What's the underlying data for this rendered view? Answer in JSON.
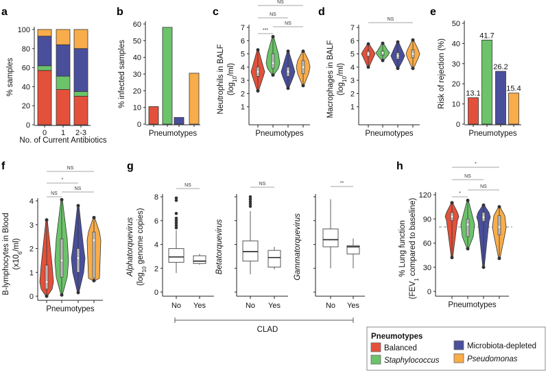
{
  "colors": {
    "balanced": "#e4513b",
    "staphylococcus": "#6cc36a",
    "microbiota_depleted": "#4a4f9c",
    "pseudomonas": "#f9ad4a"
  },
  "legend": {
    "title": "Pneumotypes",
    "items": [
      {
        "label": "Balanced",
        "key": "balanced",
        "italic": false
      },
      {
        "label": "Staphylococcus",
        "key": "staphylococcus",
        "italic": true
      },
      {
        "label": "Microbiota-depleted",
        "key": "microbiota_depleted",
        "italic": false
      },
      {
        "label": "Pseudomonas",
        "key": "pseudomonas",
        "italic": true
      }
    ]
  },
  "chart_data": [
    {
      "panel": "a",
      "type": "bar",
      "stacked": true,
      "ylabel": "% samples",
      "xlabel": "No. of Current Antibiotics",
      "categories": [
        "0",
        "1",
        "2-3"
      ],
      "ylim": [
        0,
        100
      ],
      "yticks": [
        0,
        20,
        40,
        60,
        80,
        100
      ],
      "series": [
        {
          "name": "Balanced",
          "key": "balanced",
          "values": [
            57,
            37,
            30
          ]
        },
        {
          "name": "Staphylococcus",
          "key": "staphylococcus",
          "values": [
            5,
            14,
            5
          ]
        },
        {
          "name": "Microbiota-depleted",
          "key": "microbiota_depleted",
          "values": [
            31,
            33,
            45
          ]
        },
        {
          "name": "Pseudomonas",
          "key": "pseudomonas",
          "values": [
            7,
            16,
            20
          ]
        }
      ]
    },
    {
      "panel": "b",
      "type": "bar",
      "ylabel": "% infected samples",
      "xlabel": "Pneumotypes",
      "categories": [
        "Balanced",
        "Staphylococcus",
        "Microbiota-depleted",
        "Pseudomonas"
      ],
      "values": [
        10.5,
        58,
        4,
        30.5
      ],
      "ylim": [
        0,
        60
      ],
      "yticks": [
        0,
        10,
        20,
        30,
        40,
        50,
        60
      ]
    },
    {
      "panel": "c",
      "type": "violin",
      "ylabel": [
        "Neutrophils in BALF",
        "(log",
        "10",
        "/ml)"
      ],
      "xlabel": "Pneumotypes",
      "ylim": [
        0,
        7
      ],
      "yticks": [
        1,
        2,
        3,
        4,
        5,
        6,
        7
      ],
      "groups": [
        {
          "name": "Balanced",
          "min": 2.2,
          "q1": 3.3,
          "median": 3.65,
          "q3": 4.0,
          "max": 5.3
        },
        {
          "name": "Staphylococcus",
          "min": 3.4,
          "q1": 3.9,
          "median": 4.3,
          "q3": 5.0,
          "max": 6.3
        },
        {
          "name": "Microbiota-depleted",
          "min": 2.4,
          "q1": 3.3,
          "median": 3.65,
          "q3": 4.0,
          "max": 5.2
        },
        {
          "name": "Pseudomonas",
          "min": 2.6,
          "q1": 3.5,
          "median": 4.0,
          "q3": 4.5,
          "max": 5.2
        }
      ],
      "comparisons": [
        {
          "from": 0,
          "to": 1,
          "label": "***"
        },
        {
          "from": 1,
          "to": 3,
          "label": "NS"
        },
        {
          "from": 0,
          "to": 2,
          "label": "NS"
        },
        {
          "from": 0,
          "to": 3,
          "label": "NS"
        }
      ]
    },
    {
      "panel": "d",
      "type": "violin",
      "ylabel": [
        "Macrophages in BALF",
        "(log",
        "10",
        "/ml)"
      ],
      "xlabel": "Pneumotypes",
      "ylim": [
        0,
        7
      ],
      "yticks": [
        1,
        2,
        3,
        4,
        5,
        6,
        7
      ],
      "groups": [
        {
          "name": "Balanced",
          "min": 4.0,
          "q1": 4.8,
          "median": 5.0,
          "q3": 5.2,
          "max": 5.75
        },
        {
          "name": "Staphylococcus",
          "min": 4.5,
          "q1": 4.9,
          "median": 5.1,
          "q3": 5.2,
          "max": 5.8
        },
        {
          "name": "Microbiota-depleted",
          "min": 3.9,
          "q1": 4.6,
          "median": 4.85,
          "q3": 5.1,
          "max": 5.9
        },
        {
          "name": "Pseudomonas",
          "min": 3.9,
          "q1": 4.7,
          "median": 5.0,
          "q3": 5.3,
          "max": 6.05
        }
      ],
      "comparisons": [
        {
          "from": 0,
          "to": 3,
          "label": "NS"
        }
      ]
    },
    {
      "panel": "e",
      "type": "bar",
      "ylabel": "Risk of rejection (%)",
      "xlabel": "Pneumotypes",
      "categories": [
        "Balanced",
        "Staphylococcus",
        "Microbiota-depleted",
        "Pseudomonas"
      ],
      "values": [
        13.1,
        41.7,
        26.2,
        15.4
      ],
      "value_labels": [
        "13.1",
        "41.7",
        "26.2",
        "15.4"
      ],
      "ylim": [
        0,
        50
      ],
      "yticks": [
        0,
        10,
        20,
        30,
        40,
        50
      ]
    },
    {
      "panel": "f",
      "type": "violin",
      "ylabel": [
        "B-lymphocytes in Blood",
        "(x10",
        "6",
        "/ml)"
      ],
      "xlabel": "Pneumotypes",
      "ylim": [
        0,
        4
      ],
      "yticks": [
        0,
        1,
        2,
        3,
        4
      ],
      "groups": [
        {
          "name": "Balanced",
          "min": 0,
          "q1": 0.3,
          "median": 0.6,
          "q3": 1.3,
          "max": 3.2
        },
        {
          "name": "Staphylococcus",
          "min": 0.05,
          "q1": 0.8,
          "median": 1.5,
          "q3": 2.4,
          "max": 4.05
        },
        {
          "name": "Microbiota-depleted",
          "min": 0.15,
          "q1": 1.0,
          "median": 1.6,
          "q3": 2.0,
          "max": 3.8
        },
        {
          "name": "Pseudomonas",
          "min": 0.65,
          "q1": 0.75,
          "median": 2.35,
          "q3": 2.7,
          "max": 3.3
        }
      ],
      "comparisons": [
        {
          "from": 0,
          "to": 1,
          "label": "NS"
        },
        {
          "from": 1,
          "to": 3,
          "label": "NS"
        },
        {
          "from": 0,
          "to": 2,
          "label": "*"
        },
        {
          "from": 0,
          "to": 3,
          "label": "NS"
        }
      ]
    },
    {
      "panel": "g",
      "type": "box",
      "xlabel": "CLAD",
      "ylim": [
        0,
        8
      ],
      "yticks": [
        0,
        2,
        4,
        6,
        8
      ],
      "subplots": [
        {
          "ylabel": [
            "Alphatorquevirus",
            "(log",
            "10",
            " genome copies)"
          ],
          "categories": [
            "No",
            "Yes"
          ],
          "comparison": "NS",
          "boxes": [
            {
              "min": 1.6,
              "q1": 2.5,
              "median": 2.95,
              "q3": 3.65,
              "max": 5.2,
              "outliers": [
                5.4,
                5.6,
                5.8,
                6.0,
                6.2,
                6.6,
                7.7,
                7.9
              ]
            },
            {
              "min": 2.3,
              "q1": 2.4,
              "median": 2.6,
              "q3": 3.05,
              "max": 3.2,
              "outliers": []
            }
          ]
        },
        {
          "ylabel": [
            "Betatorquevirus"
          ],
          "categories": [
            "No",
            "Yes"
          ],
          "comparison": "NS",
          "boxes": [
            {
              "min": 1.5,
              "q1": 2.6,
              "median": 3.4,
              "q3": 4.3,
              "max": 6.8,
              "outliers": [
                7.2,
                7.4,
                7.6,
                7.8,
                8.0
              ]
            },
            {
              "min": 1.9,
              "q1": 2.1,
              "median": 2.9,
              "q3": 3.5,
              "max": 3.8,
              "outliers": []
            }
          ]
        },
        {
          "ylabel": [
            "Gammatorquevirus"
          ],
          "categories": [
            "No",
            "Yes"
          ],
          "comparison": "**",
          "boxes": [
            {
              "min": 2.0,
              "q1": 3.8,
              "median": 4.4,
              "q3": 5.3,
              "max": 7.8,
              "outliers": []
            },
            {
              "min": 2.0,
              "q1": 3.2,
              "median": 3.8,
              "q3": 3.9,
              "max": 4.5,
              "outliers": []
            }
          ]
        }
      ]
    },
    {
      "panel": "h",
      "type": "violin",
      "ylabel": [
        "% Lung function",
        "(FEV",
        "1",
        " compared to baseline)"
      ],
      "xlabel": "Pneumotypes",
      "ylim": [
        0,
        120
      ],
      "yticks": [
        0,
        30,
        60,
        90,
        120
      ],
      "reference_line": 80,
      "groups": [
        {
          "name": "Balanced",
          "min": 42,
          "q1": 88,
          "median": 93,
          "q3": 98,
          "max": 110
        },
        {
          "name": "Staphylococcus",
          "min": 53,
          "q1": 68,
          "median": 83,
          "q3": 90,
          "max": 113
        },
        {
          "name": "Microbiota-depleted",
          "min": 30,
          "q1": 87,
          "median": 92,
          "q3": 98,
          "max": 107
        },
        {
          "name": "Pseudomonas",
          "min": 41,
          "q1": 70,
          "median": 80,
          "q3": 94,
          "max": 105
        }
      ],
      "comparisons": [
        {
          "from": 0,
          "to": 1,
          "label": "*"
        },
        {
          "from": 1,
          "to": 3,
          "label": "NS"
        },
        {
          "from": 0,
          "to": 2,
          "label": "NS"
        },
        {
          "from": 0,
          "to": 3,
          "label": "*"
        }
      ]
    }
  ]
}
